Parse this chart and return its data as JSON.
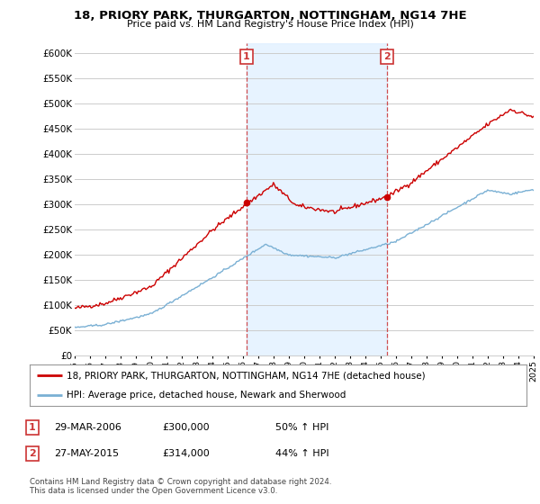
{
  "title": "18, PRIORY PARK, THURGARTON, NOTTINGHAM, NG14 7HE",
  "subtitle": "Price paid vs. HM Land Registry's House Price Index (HPI)",
  "ylim": [
    0,
    620000
  ],
  "yticks": [
    0,
    50000,
    100000,
    150000,
    200000,
    250000,
    300000,
    350000,
    400000,
    450000,
    500000,
    550000,
    600000
  ],
  "ytick_labels": [
    "£0",
    "£50K",
    "£100K",
    "£150K",
    "£200K",
    "£250K",
    "£300K",
    "£350K",
    "£400K",
    "£450K",
    "£500K",
    "£550K",
    "£600K"
  ],
  "sale1_date": 2006.24,
  "sale1_price": 300000,
  "sale1_label": "1",
  "sale2_date": 2015.4,
  "sale2_price": 314000,
  "sale2_label": "2",
  "line_color_price": "#cc0000",
  "line_color_hpi": "#7ab0d4",
  "background_color": "#ffffff",
  "plot_bg_color": "#ffffff",
  "grid_color": "#cccccc",
  "highlight_bg": "#ddeeff",
  "legend_price_label": "18, PRIORY PARK, THURGARTON, NOTTINGHAM, NG14 7HE (detached house)",
  "legend_hpi_label": "HPI: Average price, detached house, Newark and Sherwood",
  "footnote": "Contains HM Land Registry data © Crown copyright and database right 2024.\nThis data is licensed under the Open Government Licence v3.0.",
  "xmin": 1995,
  "xmax": 2025
}
